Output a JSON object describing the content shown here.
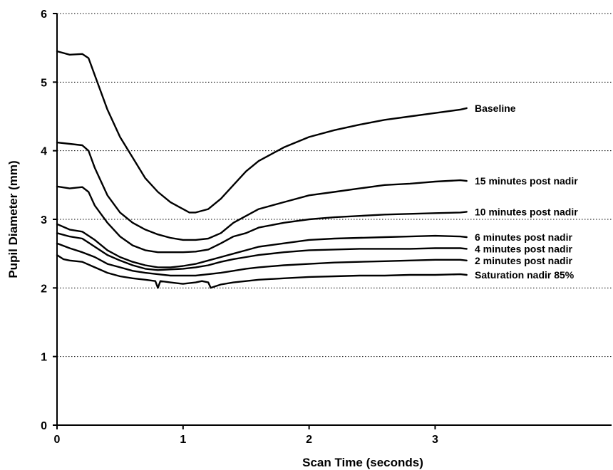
{
  "chart_data": {
    "type": "line",
    "title": "",
    "xlabel": "Scan Time (seconds)",
    "ylabel": "Pupil Diameter (mm)",
    "xlim": [
      0,
      4.4
    ],
    "ylim": [
      0,
      6
    ],
    "xticks": [
      "0",
      "1",
      "2",
      "3"
    ],
    "yticks": [
      "0",
      "1",
      "2",
      "3",
      "4",
      "5",
      "6"
    ],
    "grid": "horizontal dotted",
    "legend": "labels at right end of each line",
    "series": [
      {
        "name": "Baseline",
        "x": [
          0,
          0.1,
          0.2,
          0.25,
          0.3,
          0.4,
          0.5,
          0.6,
          0.7,
          0.8,
          0.9,
          1.0,
          1.05,
          1.1,
          1.2,
          1.3,
          1.4,
          1.5,
          1.6,
          1.8,
          2.0,
          2.2,
          2.4,
          2.6,
          2.8,
          3.0,
          3.2,
          3.25
        ],
        "y": [
          5.45,
          5.4,
          5.41,
          5.35,
          5.1,
          4.6,
          4.2,
          3.9,
          3.6,
          3.4,
          3.25,
          3.15,
          3.1,
          3.1,
          3.15,
          3.3,
          3.5,
          3.7,
          3.85,
          4.05,
          4.2,
          4.3,
          4.38,
          4.45,
          4.5,
          4.55,
          4.6,
          4.62
        ]
      },
      {
        "name": "15 minutes post nadir",
        "x": [
          0,
          0.1,
          0.2,
          0.25,
          0.3,
          0.4,
          0.5,
          0.6,
          0.7,
          0.8,
          0.9,
          1.0,
          1.1,
          1.2,
          1.3,
          1.4,
          1.5,
          1.6,
          1.8,
          2.0,
          2.2,
          2.4,
          2.6,
          2.8,
          3.0,
          3.2,
          3.25
        ],
        "y": [
          4.12,
          4.1,
          4.08,
          4.0,
          3.75,
          3.35,
          3.1,
          2.95,
          2.85,
          2.78,
          2.73,
          2.7,
          2.7,
          2.72,
          2.8,
          2.95,
          3.05,
          3.15,
          3.25,
          3.35,
          3.4,
          3.45,
          3.5,
          3.52,
          3.55,
          3.57,
          3.56
        ]
      },
      {
        "name": "10 minutes post nadir",
        "x": [
          0,
          0.1,
          0.2,
          0.25,
          0.3,
          0.4,
          0.5,
          0.6,
          0.7,
          0.8,
          0.9,
          1.0,
          1.1,
          1.2,
          1.3,
          1.4,
          1.5,
          1.6,
          1.8,
          2.0,
          2.2,
          2.4,
          2.6,
          2.8,
          3.0,
          3.2,
          3.25
        ],
        "y": [
          3.48,
          3.45,
          3.47,
          3.4,
          3.2,
          2.95,
          2.75,
          2.62,
          2.55,
          2.52,
          2.52,
          2.52,
          2.53,
          2.56,
          2.65,
          2.75,
          2.8,
          2.88,
          2.95,
          3.0,
          3.03,
          3.05,
          3.07,
          3.08,
          3.09,
          3.1,
          3.11
        ]
      },
      {
        "name": "6 minutes post nadir",
        "x": [
          0,
          0.1,
          0.2,
          0.3,
          0.4,
          0.5,
          0.6,
          0.7,
          0.8,
          0.9,
          1.0,
          1.1,
          1.2,
          1.3,
          1.4,
          1.5,
          1.6,
          1.8,
          2.0,
          2.2,
          2.4,
          2.6,
          2.8,
          3.0,
          3.2,
          3.25
        ],
        "y": [
          2.93,
          2.85,
          2.82,
          2.7,
          2.55,
          2.45,
          2.38,
          2.33,
          2.3,
          2.3,
          2.32,
          2.35,
          2.4,
          2.45,
          2.5,
          2.55,
          2.6,
          2.65,
          2.7,
          2.72,
          2.73,
          2.74,
          2.75,
          2.76,
          2.75,
          2.74
        ]
      },
      {
        "name": "4 minutes post nadir",
        "x": [
          0,
          0.1,
          0.2,
          0.3,
          0.4,
          0.5,
          0.6,
          0.7,
          0.8,
          0.9,
          1.0,
          1.1,
          1.2,
          1.3,
          1.4,
          1.5,
          1.6,
          1.8,
          2.0,
          2.2,
          2.4,
          2.6,
          2.8,
          3.0,
          3.2,
          3.25
        ],
        "y": [
          2.8,
          2.75,
          2.72,
          2.6,
          2.48,
          2.4,
          2.33,
          2.28,
          2.26,
          2.27,
          2.28,
          2.3,
          2.33,
          2.38,
          2.42,
          2.45,
          2.48,
          2.52,
          2.55,
          2.56,
          2.57,
          2.57,
          2.57,
          2.58,
          2.58,
          2.57
        ]
      },
      {
        "name": "2 minutes post nadir",
        "x": [
          0,
          0.1,
          0.2,
          0.3,
          0.4,
          0.5,
          0.6,
          0.7,
          0.8,
          0.9,
          1.0,
          1.1,
          1.2,
          1.3,
          1.4,
          1.5,
          1.6,
          1.8,
          2.0,
          2.2,
          2.4,
          2.6,
          2.8,
          3.0,
          3.2,
          3.25
        ],
        "y": [
          2.65,
          2.58,
          2.52,
          2.45,
          2.35,
          2.3,
          2.25,
          2.22,
          2.2,
          2.18,
          2.18,
          2.18,
          2.2,
          2.22,
          2.25,
          2.28,
          2.3,
          2.33,
          2.35,
          2.37,
          2.38,
          2.39,
          2.4,
          2.41,
          2.41,
          2.4
        ]
      },
      {
        "name": "Saturation nadir 85%",
        "x": [
          0,
          0.05,
          0.1,
          0.2,
          0.3,
          0.4,
          0.5,
          0.6,
          0.7,
          0.78,
          0.8,
          0.82,
          0.9,
          1.0,
          1.1,
          1.15,
          1.2,
          1.22,
          1.25,
          1.3,
          1.4,
          1.5,
          1.6,
          1.8,
          2.0,
          2.2,
          2.4,
          2.6,
          2.8,
          3.0,
          3.2,
          3.25
        ],
        "y": [
          2.48,
          2.42,
          2.4,
          2.38,
          2.3,
          2.22,
          2.17,
          2.14,
          2.12,
          2.1,
          2.0,
          2.1,
          2.08,
          2.06,
          2.08,
          2.1,
          2.08,
          2.0,
          2.02,
          2.05,
          2.08,
          2.1,
          2.12,
          2.14,
          2.16,
          2.17,
          2.18,
          2.18,
          2.19,
          2.19,
          2.2,
          2.19
        ]
      }
    ]
  }
}
